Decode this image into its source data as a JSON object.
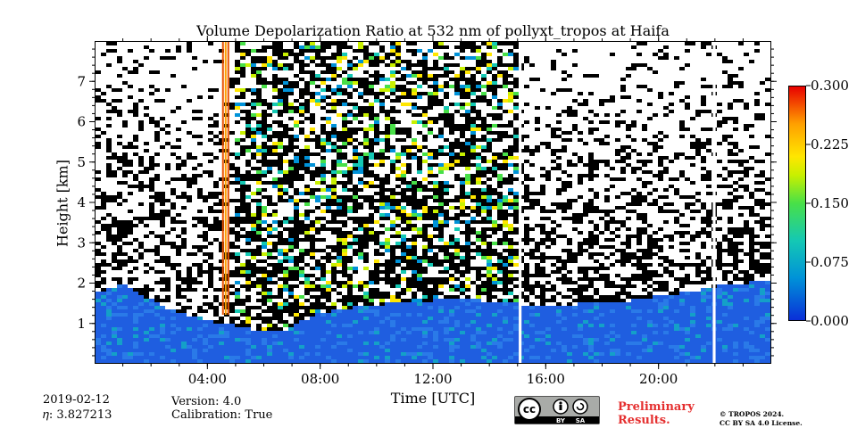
{
  "chart_data": {
    "type": "heatmap",
    "title": "Volume Depolarization Ratio at 532 nm of pollyxt_tropos at Haifa",
    "xlabel": "Time [UTC]",
    "ylabel": "Height [km]",
    "x_tick_labels": [
      "04:00",
      "08:00",
      "12:00",
      "16:00",
      "20:00"
    ],
    "x_tick_values_hours": [
      4,
      8,
      12,
      16,
      20
    ],
    "xlim_hours": [
      0,
      24
    ],
    "y_tick_labels": [
      "1",
      "2",
      "3",
      "4",
      "5",
      "6",
      "7"
    ],
    "y_tick_values": [
      1,
      2,
      3,
      4,
      5,
      6,
      7
    ],
    "ylim": [
      0,
      8
    ],
    "colorbar": {
      "tick_labels": [
        "0.000",
        "0.075",
        "0.150",
        "0.225",
        "0.300"
      ],
      "tick_values": [
        0.0,
        0.075,
        0.15,
        0.225,
        0.3
      ],
      "range": [
        0.0,
        0.3
      ]
    },
    "data_gaps_hours": [
      [
        15.05,
        15.15
      ],
      [
        21.95,
        22.05
      ]
    ],
    "boundary_layer_top_km": [
      {
        "t": 0.2,
        "h": 1.8
      },
      {
        "t": 1.0,
        "h": 2.0
      },
      {
        "t": 2.5,
        "h": 1.4
      },
      {
        "t": 4.0,
        "h": 1.1
      },
      {
        "t": 5.5,
        "h": 0.9
      },
      {
        "t": 6.5,
        "h": 0.8
      },
      {
        "t": 8.0,
        "h": 1.3
      },
      {
        "t": 10.0,
        "h": 1.5
      },
      {
        "t": 12.0,
        "h": 1.6
      },
      {
        "t": 13.8,
        "h": 1.6
      },
      {
        "t": 15.2,
        "h": 1.5
      },
      {
        "t": 17.0,
        "h": 1.5
      },
      {
        "t": 19.0,
        "h": 1.6
      },
      {
        "t": 21.0,
        "h": 1.8
      },
      {
        "t": 22.5,
        "h": 2.0
      },
      {
        "t": 24.0,
        "h": 2.1
      }
    ],
    "colors": {
      "low": "#0a2fd8",
      "mid": "#48e048",
      "high": "#e80000"
    }
  },
  "info": {
    "date": "2019-02-12",
    "eta": "𝜂: 3.827213",
    "version": "Version: 4.0",
    "calibration": "Calibration: True"
  },
  "license": {
    "badge_cc": "cc",
    "badge_by": "BY",
    "badge_sa": "SA",
    "preliminary_line1": "Preliminary",
    "preliminary_line2": "Results.",
    "copyright_line1": "© TROPOS 2024.",
    "copyright_line2": "CC BY SA 4.0 License."
  }
}
